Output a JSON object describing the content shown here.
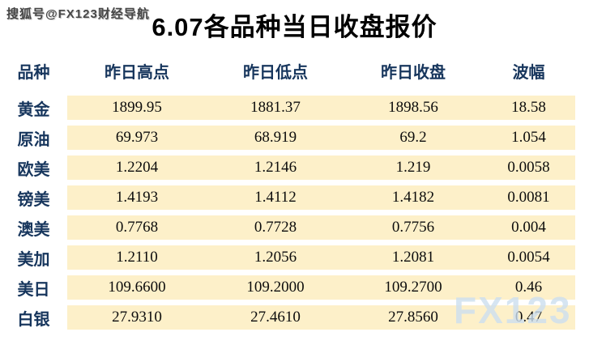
{
  "page": {
    "top_watermark": "搜狐号@FX123财经导航",
    "title": "6.07各品种当日收盘报价",
    "brand_watermark": "FX123"
  },
  "colors": {
    "header_text": "#17365d",
    "label_text": "#17365d",
    "cell_background": "#fdf0c9",
    "title_text": "#000000",
    "brand_watermark_blue": "#cddff0",
    "sohu_watermark_gray": "#474747"
  },
  "table": {
    "headers": [
      "品种",
      "昨日高点",
      "昨日低点",
      "昨日收盘",
      "波幅"
    ],
    "rows": [
      {
        "label": "黄金",
        "high": "1899.95",
        "low": "1881.37",
        "close": "1898.56",
        "range": "18.58"
      },
      {
        "label": "原油",
        "high": "69.973",
        "low": "68.919",
        "close": "69.2",
        "range": "1.054"
      },
      {
        "label": "欧美",
        "high": "1.2204",
        "low": "1.2146",
        "close": "1.219",
        "range": "0.0058"
      },
      {
        "label": "镑美",
        "high": "1.4193",
        "low": "1.4112",
        "close": "1.4182",
        "range": "0.0081"
      },
      {
        "label": "澳美",
        "high": "0.7768",
        "low": "0.7728",
        "close": "0.7756",
        "range": "0.004"
      },
      {
        "label": "美加",
        "high": "1.2110",
        "low": "1.2056",
        "close": "1.2081",
        "range": "0.0054"
      },
      {
        "label": "美日",
        "high": "109.6600",
        "low": "109.2000",
        "close": "109.2700",
        "range": "0.46"
      },
      {
        "label": "白银",
        "high": "27.9310",
        "low": "27.4610",
        "close": "27.8560",
        "range": "0.47"
      }
    ]
  },
  "chart_data": {
    "type": "table",
    "title": "6.07各品种当日收盘报价",
    "columns": [
      "品种",
      "昨日高点",
      "昨日低点",
      "昨日收盘",
      "波幅"
    ],
    "rows": [
      [
        "黄金",
        1899.95,
        1881.37,
        1898.56,
        18.58
      ],
      [
        "原油",
        69.973,
        68.919,
        69.2,
        1.054
      ],
      [
        "欧美",
        1.2204,
        1.2146,
        1.219,
        0.0058
      ],
      [
        "镑美",
        1.4193,
        1.4112,
        1.4182,
        0.0081
      ],
      [
        "澳美",
        0.7768,
        0.7728,
        0.7756,
        0.004
      ],
      [
        "美加",
        1.211,
        1.2056,
        1.2081,
        0.0054
      ],
      [
        "美日",
        109.66,
        109.2,
        109.27,
        0.46
      ],
      [
        "白银",
        27.931,
        27.461,
        27.856,
        0.47
      ]
    ]
  }
}
